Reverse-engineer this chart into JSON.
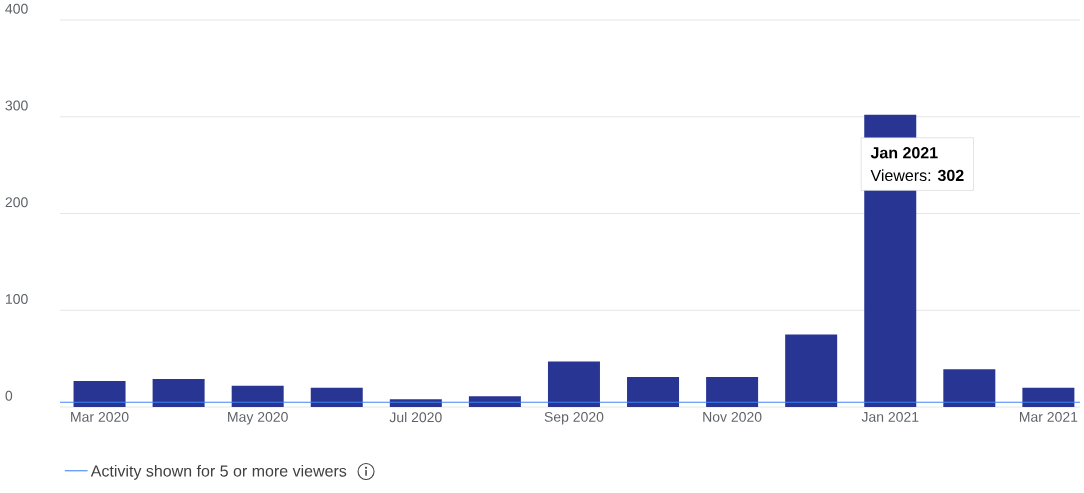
{
  "chart_data": {
    "type": "bar",
    "categories": [
      "Mar 2020",
      null,
      "May 2020",
      null,
      "Jul 2020",
      null,
      "Sep 2020",
      null,
      "Nov 2020",
      null,
      "Jan 2021",
      null,
      "Mar 2021"
    ],
    "values": [
      27,
      29,
      22,
      20,
      8,
      11,
      47,
      31,
      31,
      75,
      302,
      39,
      20
    ],
    "color": "#283593",
    "ylim": [
      0,
      400
    ],
    "yticks": [
      0,
      100,
      200,
      300,
      400
    ],
    "grid": "y",
    "ref_lines": [
      {
        "axis": "y",
        "value": 5,
        "label": "Activity shown for 5 or more viewers",
        "color": "#4285f4"
      }
    ],
    "legend": "bottom",
    "annotations": [
      {
        "text": "**Jan 2021**",
        "x": "Jan 2021",
        "y": 302
      },
      "Viewers: **302**"
    ]
  }
}
